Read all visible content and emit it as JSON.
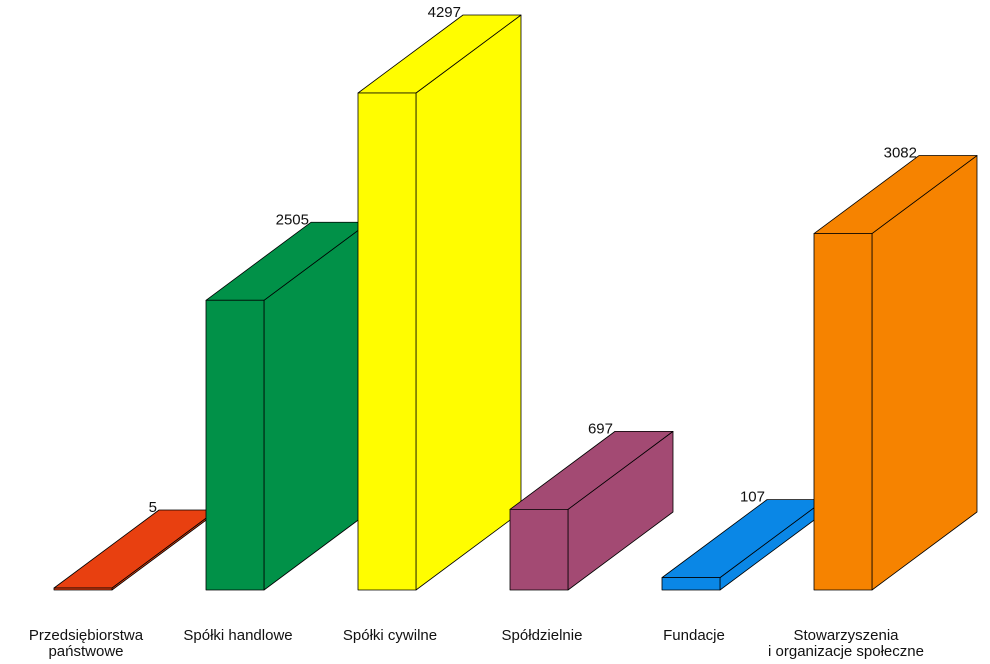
{
  "chart_data": {
    "type": "bar",
    "style": "3d-column",
    "title": "",
    "xlabel": "",
    "ylabel": "",
    "ylim": [
      0,
      4297
    ],
    "grid": false,
    "legend": "none",
    "categories": [
      [
        "Przedsiębiorstwa",
        "państwowe"
      ],
      [
        "Spółki handlowe"
      ],
      [
        "Spółki cywilne"
      ],
      [
        "Spółdzielnie"
      ],
      [
        "Fundacje"
      ],
      [
        "Stowarzyszenia",
        "i organizacje społeczne"
      ]
    ],
    "values": [
      5,
      2505,
      4297,
      697,
      107,
      3082
    ],
    "value_labels": [
      "5",
      "2505",
      "4297",
      "697",
      "107",
      "3082"
    ],
    "colors": [
      "#e84010",
      "#019148",
      "#fffd00",
      "#a34a73",
      "#0a87e6",
      "#f68300"
    ]
  }
}
